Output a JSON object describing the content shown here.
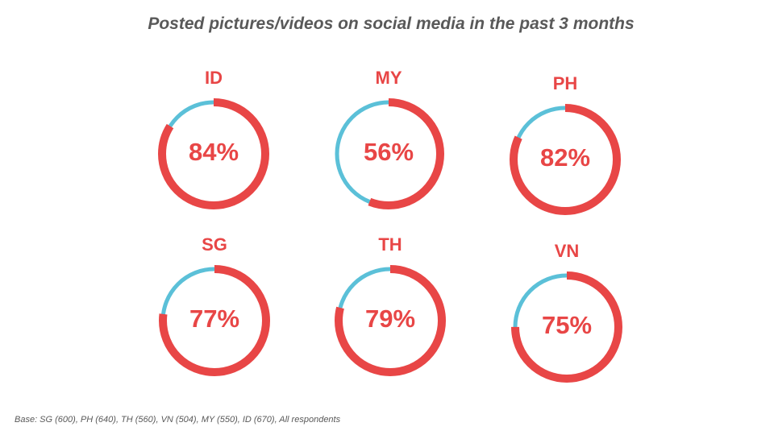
{
  "title": "Posted pictures/videos on social media in the past 3 months",
  "footnote": "Base: SG (600), PH (640), TH (560), VN (504), MY (550), ID (670), All respondents",
  "colors": {
    "primary": "#e84646",
    "remainder": "#5bc0d8"
  },
  "chart_data": {
    "type": "pie",
    "subtype": "donut",
    "title": "Posted pictures/videos on social media in the past 3 months",
    "unit": "%",
    "items": [
      {
        "label": "ID",
        "value": 84,
        "display": "84%"
      },
      {
        "label": "MY",
        "value": 56,
        "display": "56%"
      },
      {
        "label": "PH",
        "value": 82,
        "display": "82%"
      },
      {
        "label": "SG",
        "value": 77,
        "display": "77%"
      },
      {
        "label": "TH",
        "value": 79,
        "display": "79%"
      },
      {
        "label": "VN",
        "value": 75,
        "display": "75%"
      }
    ]
  }
}
